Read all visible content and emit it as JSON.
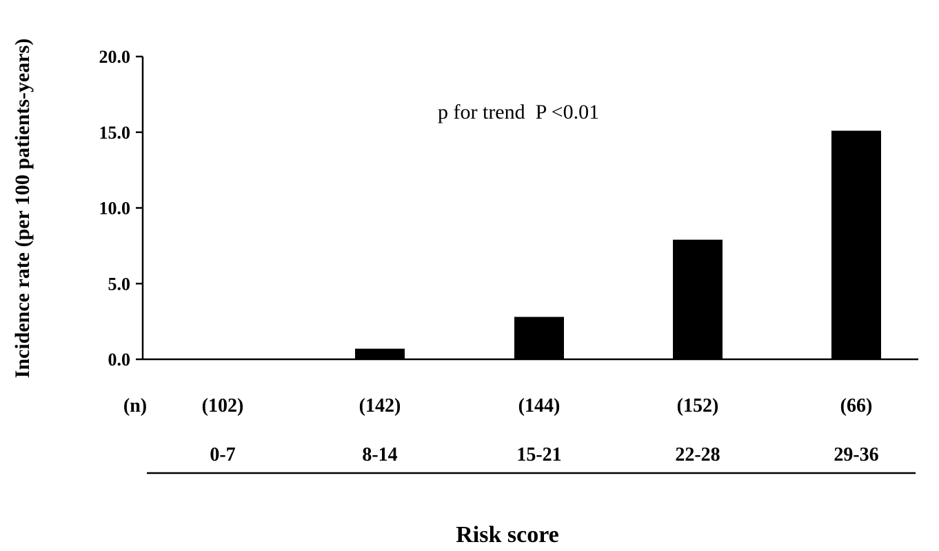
{
  "chart_data": {
    "type": "bar",
    "ylabel": "Incidence rate (per 100 patients-years)",
    "xlabel": "Risk score",
    "annotation": "p for trend  P <0.01",
    "n_header": "(n)",
    "categories": [
      "0-7",
      "8-14",
      "15-21",
      "22-28",
      "29-36"
    ],
    "n_labels": [
      "(102)",
      "(142)",
      "(144)",
      "(152)",
      "(66)"
    ],
    "values": [
      0.0,
      0.7,
      2.8,
      7.9,
      15.1
    ],
    "ylim": [
      0,
      20
    ],
    "yticks": [
      "0.0",
      "5.0",
      "10.0",
      "15.0",
      "20.0"
    ],
    "grid": false,
    "bar_color": "#000000"
  }
}
